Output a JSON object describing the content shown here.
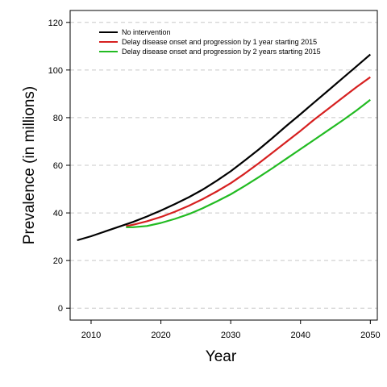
{
  "chart_data": {
    "type": "line",
    "title": "",
    "xlabel": "Year",
    "ylabel": "Prevalence (in millions)",
    "xlim": [
      2007,
      2051
    ],
    "ylim": [
      -5,
      125
    ],
    "xticks": [
      2010,
      2020,
      2030,
      2040,
      2050
    ],
    "yticks": [
      0,
      20,
      40,
      60,
      80,
      100,
      120
    ],
    "grid": "horizontal-dashed",
    "legend_placement": "top-left",
    "series": [
      {
        "name": "No intervention",
        "color": "#000000",
        "x": [
          2008,
          2010,
          2012,
          2014,
          2016,
          2018,
          2020,
          2022,
          2024,
          2026,
          2028,
          2030,
          2032,
          2034,
          2036,
          2038,
          2040,
          2042,
          2044,
          2046,
          2048,
          2050
        ],
        "y": [
          28.5,
          30.2,
          32.2,
          34.2,
          36.2,
          38.5,
          41.0,
          43.7,
          46.6,
          49.8,
          53.5,
          57.5,
          62.0,
          66.6,
          71.5,
          76.6,
          81.5,
          86.5,
          91.5,
          96.5,
          101.5,
          106.5
        ]
      },
      {
        "name": "Delay disease onset and progression by 1 year starting 2015",
        "color": "#d62020",
        "x": [
          2015,
          2016,
          2018,
          2020,
          2022,
          2024,
          2026,
          2028,
          2030,
          2032,
          2034,
          2036,
          2038,
          2040,
          2042,
          2044,
          2046,
          2048,
          2050
        ],
        "y": [
          34.5,
          35.0,
          36.5,
          38.3,
          40.5,
          43.0,
          45.8,
          49.0,
          52.5,
          56.5,
          60.8,
          65.3,
          69.9,
          74.5,
          79.3,
          83.8,
          88.3,
          92.8,
          97.0
        ]
      },
      {
        "name": "Delay disease onset and progression by 2 years starting 2015",
        "color": "#22bb22",
        "x": [
          2015,
          2016,
          2018,
          2020,
          2022,
          2024,
          2026,
          2028,
          2030,
          2032,
          2034,
          2036,
          2038,
          2040,
          2042,
          2044,
          2046,
          2048,
          2050
        ],
        "y": [
          34.0,
          34.0,
          34.5,
          35.8,
          37.5,
          39.5,
          42.0,
          44.8,
          47.8,
          51.3,
          55.0,
          58.8,
          62.8,
          66.8,
          70.8,
          74.8,
          78.8,
          83.0,
          87.5
        ]
      }
    ]
  }
}
